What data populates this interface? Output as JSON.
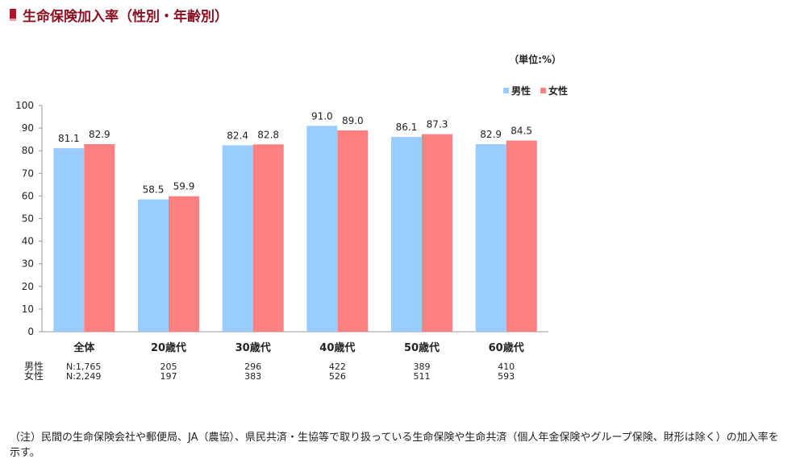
{
  "page": {
    "title": "生命保険加入率（性別・年齢別）"
  },
  "chart_data": {
    "type": "bar",
    "categories": [
      "全体",
      "20歳代",
      "30歳代",
      "40歳代",
      "50歳代",
      "60歳代"
    ],
    "series": [
      {
        "name": "男性",
        "values": [
          81.1,
          58.5,
          82.4,
          91.0,
          86.1,
          82.9
        ],
        "color": "#99ccff"
      },
      {
        "name": "女性",
        "values": [
          82.9,
          59.9,
          82.8,
          89.0,
          87.3,
          84.5
        ],
        "color": "#ff8080"
      }
    ],
    "unit_label": "（単位:%）",
    "ylim": [
      0,
      100
    ],
    "yticks": [
      0,
      10,
      20,
      30,
      40,
      50,
      60,
      70,
      80,
      90,
      100
    ],
    "grid": false,
    "legend_position": "top-right",
    "sample_sizes": [
      {
        "label": "男性",
        "values": [
          "N:1,765",
          "205",
          "296",
          "422",
          "389",
          "410"
        ]
      },
      {
        "label": "女性",
        "values": [
          "N:2,249",
          "197",
          "383",
          "526",
          "511",
          "593"
        ]
      }
    ]
  },
  "note": "（注）民間の生命保険会社や郵便局、JA（農協）、県民共済・生協等で取り扱っている生命保険や生命共済（個人年金保険やグループ保険、財形は除く）の加入率を示す。"
}
